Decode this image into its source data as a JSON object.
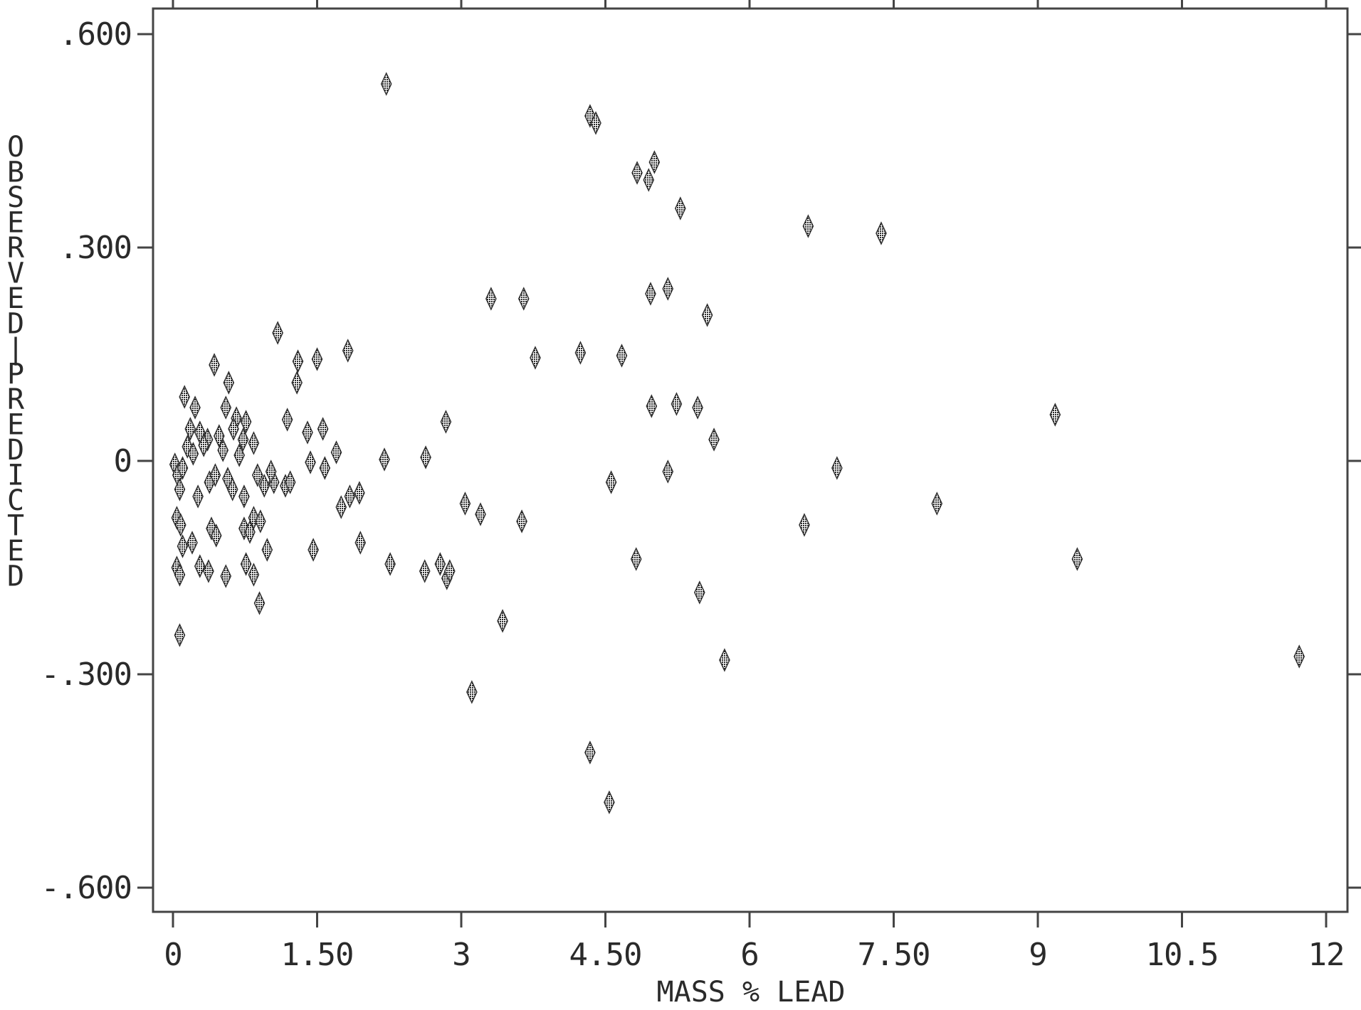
{
  "chart_data": {
    "type": "scatter",
    "title": "",
    "xlabel": "MASS % LEAD",
    "ylabel": "OBSERVED - PREDICTED",
    "xlim": [
      0,
      12
    ],
    "ylim": [
      -0.6,
      0.6
    ],
    "x_ticks": [
      0,
      1.5,
      3,
      4.5,
      6,
      7.5,
      9,
      10.5,
      12
    ],
    "x_tick_labels": [
      "0",
      "1.50",
      "3",
      "4.50",
      "6",
      "7.50",
      "9",
      "10.5",
      "12"
    ],
    "y_ticks": [
      0.6,
      0.3,
      0,
      -0.3,
      -0.6
    ],
    "y_tick_labels": [
      ".600",
      ".300",
      "0",
      "-.300",
      "-.600"
    ],
    "grid": false,
    "legend": "none",
    "marker": "diamond",
    "colors": {
      "marker": "#303030",
      "axis": "#444444",
      "text": "#2a2a2a"
    },
    "series": [
      {
        "points": [
          [
            2.22,
            0.53
          ],
          [
            4.34,
            0.485
          ],
          [
            4.4,
            0.475
          ],
          [
            4.83,
            0.405
          ],
          [
            4.95,
            0.395
          ],
          [
            5.01,
            0.42
          ],
          [
            5.28,
            0.355
          ],
          [
            6.61,
            0.33
          ],
          [
            7.37,
            0.32
          ],
          [
            3.31,
            0.228
          ],
          [
            3.65,
            0.228
          ],
          [
            4.97,
            0.235
          ],
          [
            5.15,
            0.242
          ],
          [
            5.56,
            0.205
          ],
          [
            1.09,
            0.18
          ],
          [
            1.3,
            0.14
          ],
          [
            1.29,
            0.11
          ],
          [
            1.5,
            0.143
          ],
          [
            1.82,
            0.155
          ],
          [
            0.43,
            0.135
          ],
          [
            3.77,
            0.145
          ],
          [
            4.24,
            0.152
          ],
          [
            4.67,
            0.148
          ],
          [
            9.18,
            0.065
          ],
          [
            4.98,
            0.077
          ],
          [
            5.24,
            0.08
          ],
          [
            5.46,
            0.075
          ],
          [
            5.63,
            0.03
          ],
          [
            2.84,
            0.055
          ],
          [
            1.19,
            0.058
          ],
          [
            1.56,
            0.045
          ],
          [
            1.4,
            0.04
          ],
          [
            0.12,
            0.09
          ],
          [
            0.23,
            0.075
          ],
          [
            0.58,
            0.11
          ],
          [
            0.55,
            0.075
          ],
          [
            0.66,
            0.06
          ],
          [
            0.76,
            0.055
          ],
          [
            0.84,
            0.025
          ],
          [
            0.18,
            0.045
          ],
          [
            0.28,
            0.04
          ],
          [
            0.36,
            0.03
          ],
          [
            0.48,
            0.035
          ],
          [
            0.63,
            0.045
          ],
          [
            0.73,
            0.03
          ],
          [
            0.15,
            0.02
          ],
          [
            0.21,
            0.01
          ],
          [
            0.32,
            0.022
          ],
          [
            0.52,
            0.015
          ],
          [
            0.69,
            0.008
          ],
          [
            1.7,
            0.012
          ],
          [
            2.2,
            0.002
          ],
          [
            2.63,
            0.005
          ],
          [
            1.43,
            -0.002
          ],
          [
            1.58,
            -0.01
          ],
          [
            0.02,
            -0.005
          ],
          [
            0.05,
            -0.02
          ],
          [
            0.07,
            -0.04
          ],
          [
            0.1,
            -0.01
          ],
          [
            0.38,
            -0.03
          ],
          [
            0.44,
            -0.02
          ],
          [
            0.57,
            -0.025
          ],
          [
            0.88,
            -0.02
          ],
          [
            0.95,
            -0.035
          ],
          [
            1.05,
            -0.03
          ],
          [
            1.02,
            -0.015
          ],
          [
            1.17,
            -0.035
          ],
          [
            1.22,
            -0.03
          ],
          [
            0.26,
            -0.05
          ],
          [
            0.62,
            -0.04
          ],
          [
            0.74,
            -0.05
          ],
          [
            0.84,
            -0.08
          ],
          [
            1.75,
            -0.065
          ],
          [
            1.84,
            -0.05
          ],
          [
            1.94,
            -0.045
          ],
          [
            0.04,
            -0.08
          ],
          [
            0.08,
            -0.09
          ],
          [
            0.1,
            -0.12
          ],
          [
            0.2,
            -0.115
          ],
          [
            0.4,
            -0.095
          ],
          [
            0.45,
            -0.105
          ],
          [
            0.74,
            -0.095
          ],
          [
            0.8,
            -0.1
          ],
          [
            0.91,
            -0.085
          ],
          [
            0.98,
            -0.125
          ],
          [
            1.46,
            -0.125
          ],
          [
            1.95,
            -0.115
          ],
          [
            0.04,
            -0.15
          ],
          [
            0.07,
            -0.16
          ],
          [
            0.28,
            -0.148
          ],
          [
            0.37,
            -0.155
          ],
          [
            0.55,
            -0.162
          ],
          [
            0.76,
            -0.145
          ],
          [
            0.84,
            -0.16
          ],
          [
            0.9,
            -0.2
          ],
          [
            2.26,
            -0.145
          ],
          [
            2.62,
            -0.155
          ],
          [
            2.78,
            -0.145
          ],
          [
            2.85,
            -0.165
          ],
          [
            2.88,
            -0.155
          ],
          [
            3.04,
            -0.06
          ],
          [
            3.2,
            -0.075
          ],
          [
            3.63,
            -0.085
          ],
          [
            4.56,
            -0.03
          ],
          [
            5.15,
            -0.015
          ],
          [
            6.91,
            -0.01
          ],
          [
            7.95,
            -0.06
          ],
          [
            6.57,
            -0.09
          ],
          [
            4.82,
            -0.138
          ],
          [
            9.41,
            -0.138
          ],
          [
            5.48,
            -0.185
          ],
          [
            5.74,
            -0.28
          ],
          [
            11.72,
            -0.275
          ],
          [
            3.43,
            -0.225
          ],
          [
            3.11,
            -0.325
          ],
          [
            0.07,
            -0.245
          ],
          [
            4.34,
            -0.41
          ],
          [
            4.54,
            -0.48
          ]
        ]
      }
    ]
  }
}
